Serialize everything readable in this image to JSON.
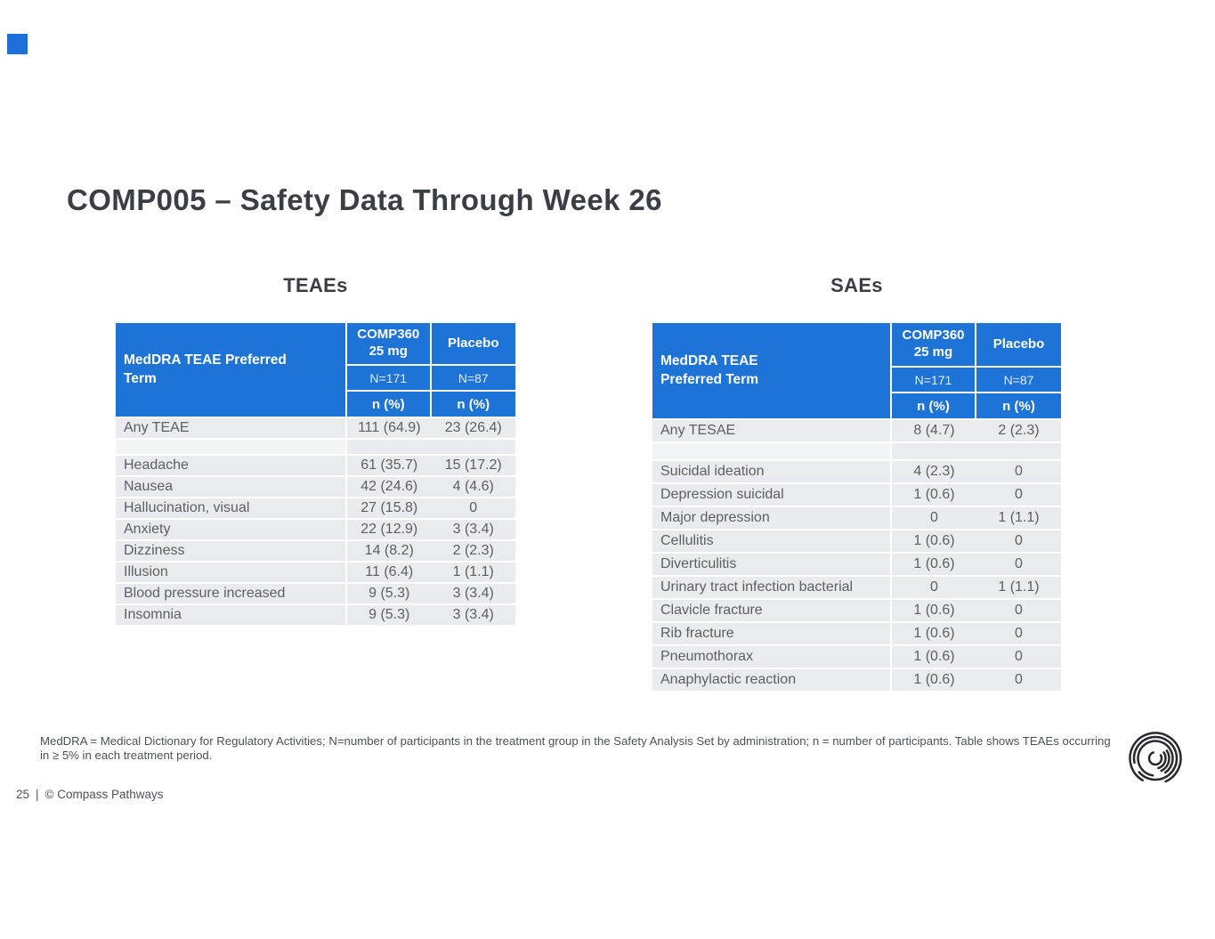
{
  "slide": {
    "title": "COMP005 – Safety Data Through Week 26",
    "accent_blue": "#1e74d6"
  },
  "teae_table": {
    "section_title": "TEAEs",
    "header": {
      "row_label": "MedDRA TEAE Preferred\nTerm",
      "col1_title": "COMP360 25 mg",
      "col2_title": "Placebo",
      "col1_n": "N=171",
      "col2_n": "N=87",
      "col1_unit": "n (%)",
      "col2_unit": "n (%)"
    },
    "rows": [
      {
        "label": "Any TEAE",
        "comp360": "111 (64.9)",
        "placebo": "23 (26.4)"
      },
      {
        "label": "",
        "comp360": "",
        "placebo": "",
        "spacer": true
      },
      {
        "label": "Headache",
        "comp360": "61 (35.7)",
        "placebo": "15 (17.2)"
      },
      {
        "label": "Nausea",
        "comp360": "42 (24.6)",
        "placebo": "4 (4.6)"
      },
      {
        "label": "Hallucination, visual",
        "comp360": "27 (15.8)",
        "placebo": "0"
      },
      {
        "label": "Anxiety",
        "comp360": "22 (12.9)",
        "placebo": "3 (3.4)"
      },
      {
        "label": "Dizziness",
        "comp360": "14 (8.2)",
        "placebo": "2 (2.3)"
      },
      {
        "label": "Illusion",
        "comp360": "11 (6.4)",
        "placebo": "1 (1.1)"
      },
      {
        "label": "Blood pressure increased",
        "comp360": "9 (5.3)",
        "placebo": "3 (3.4)"
      },
      {
        "label": "Insomnia",
        "comp360": "9 (5.3)",
        "placebo": "3 (3.4)"
      }
    ]
  },
  "sae_table": {
    "section_title": "SAEs",
    "header": {
      "row_label": "MedDRA TEAE\nPreferred Term",
      "col1_title": "COMP360 25 mg",
      "col2_title": "Placebo",
      "col1_n": "N=171",
      "col2_n": "N=87",
      "col1_unit": "n (%)",
      "col2_unit": "n (%)"
    },
    "rows": [
      {
        "label": "Any TESAE",
        "comp360": "8 (4.7)",
        "placebo": "2 (2.3)"
      },
      {
        "label": "",
        "comp360": "",
        "placebo": "",
        "spacer": true
      },
      {
        "label": "Suicidal ideation",
        "comp360": "4 (2.3)",
        "placebo": "0"
      },
      {
        "label": "Depression suicidal",
        "comp360": "1 (0.6)",
        "placebo": "0"
      },
      {
        "label": "Major depression",
        "comp360": "0",
        "placebo": "1 (1.1)"
      },
      {
        "label": "Cellulitis",
        "comp360": "1 (0.6)",
        "placebo": "0"
      },
      {
        "label": "Diverticulitis",
        "comp360": "1 (0.6)",
        "placebo": "0"
      },
      {
        "label": "Urinary tract infection bacterial",
        "comp360": "0",
        "placebo": "1 (1.1)"
      },
      {
        "label": "Clavicle fracture",
        "comp360": "1 (0.6)",
        "placebo": "0"
      },
      {
        "label": "Rib fracture",
        "comp360": "1 (0.6)",
        "placebo": "0"
      },
      {
        "label": "Pneumothorax",
        "comp360": "1 (0.6)",
        "placebo": "0"
      },
      {
        "label": "Anaphylactic reaction",
        "comp360": "1 (0.6)",
        "placebo": "0"
      }
    ]
  },
  "footnote": {
    "text": "MedDRA = Medical Dictionary for Regulatory Activities; N=number of participants in the treatment group in the Safety Analysis Set by administration; n = number of participants. Table shows TEAEs occurring in ≥ 5% in each treatment period."
  },
  "footer": {
    "page_number": "25",
    "divider": "|",
    "copyright": "© Compass Pathways"
  },
  "icons": {
    "corner_square": "blue-square-marker",
    "logo": "compass-pathways-spiral-logo"
  }
}
